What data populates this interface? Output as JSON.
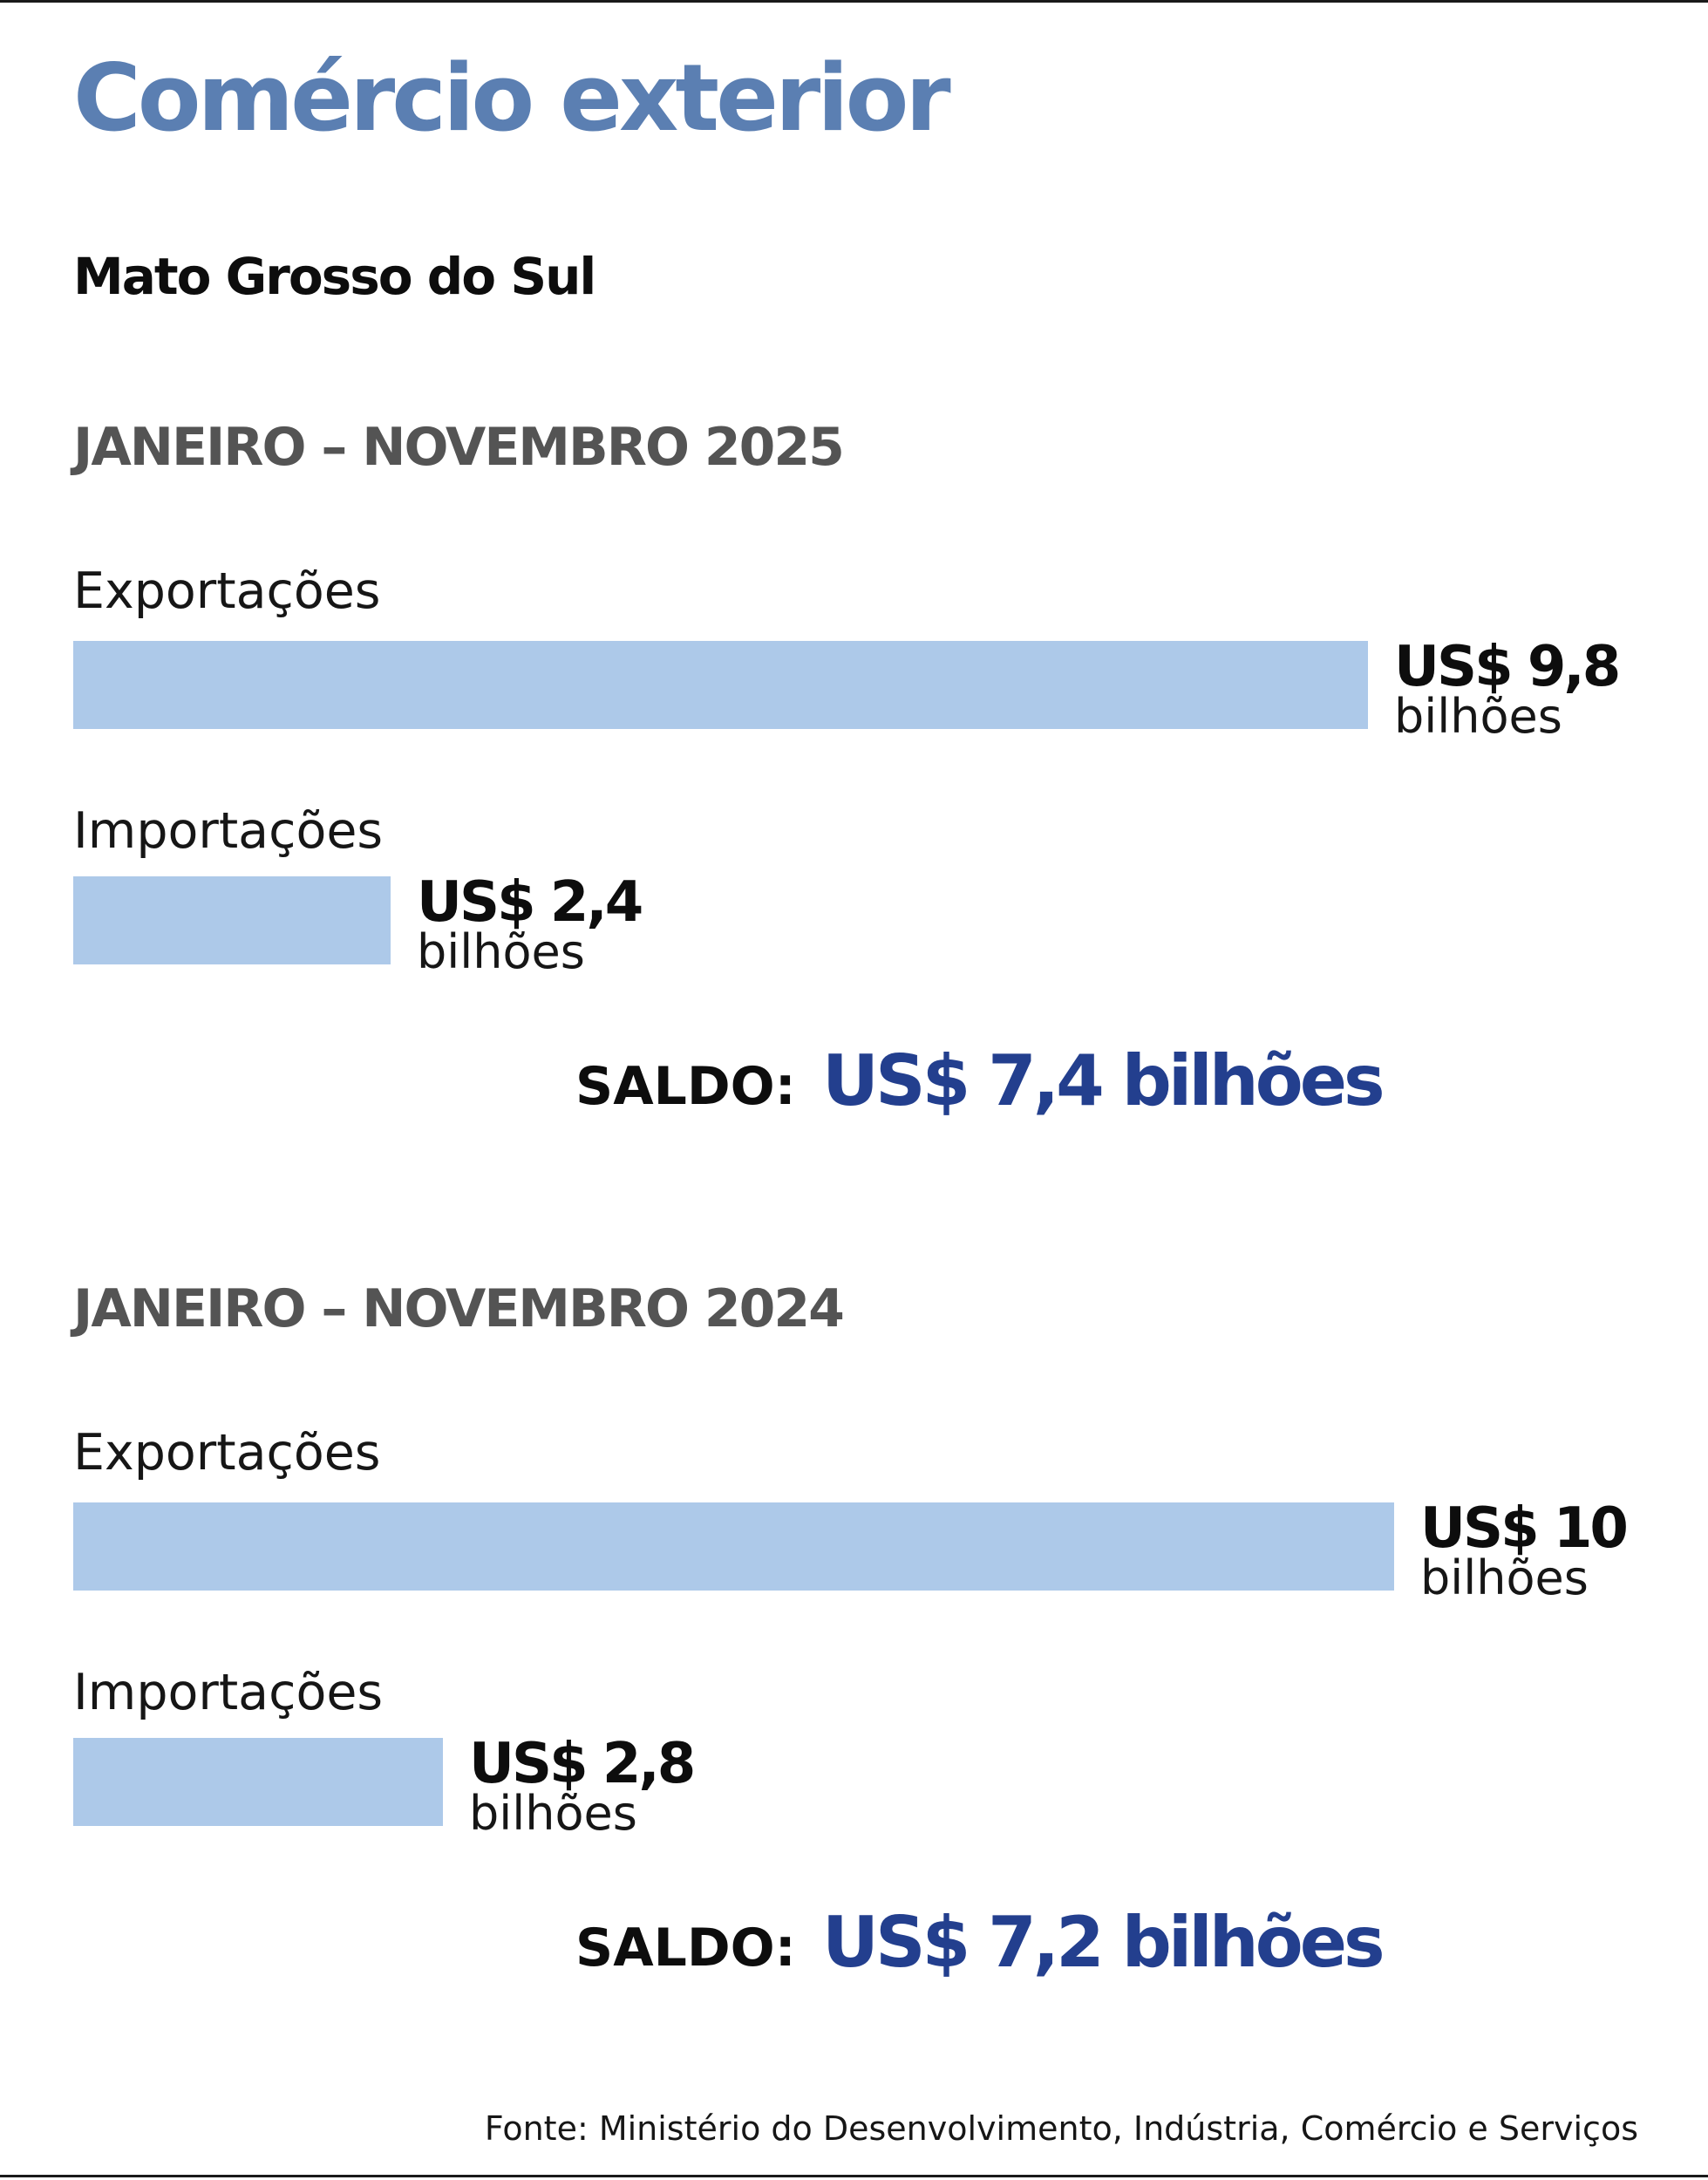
{
  "chart_data": {
    "type": "bar",
    "title": "Comércio exterior",
    "subtitle": "Mato Grosso do Sul",
    "unit_label": "bilhões",
    "groups": [
      {
        "period": "JANEIRO – NOVEMBRO 2025",
        "categories": [
          "Exportações",
          "Importações"
        ],
        "values": [
          9.8,
          2.4
        ],
        "value_labels": [
          "US$ 9,8",
          "US$ 2,4"
        ],
        "saldo_label": "SALDO:",
        "saldo_value": "US$ 7,4 bilhões"
      },
      {
        "period": "JANEIRO – NOVEMBRO 2024",
        "categories": [
          "Exportações",
          "Importações"
        ],
        "values": [
          10,
          2.8
        ],
        "value_labels": [
          "US$ 10",
          "US$ 2,8"
        ],
        "saldo_label": "SALDO:",
        "saldo_value": "US$ 7,2 bilhões"
      }
    ],
    "source": "Fonte: Ministério do Desenvolvimento, Indústria, Comércio e Serviços",
    "colors": {
      "title": "#5b7fb2",
      "bar": "#adc9e9",
      "saldo_value": "#233f8e",
      "period": "#545454"
    }
  }
}
